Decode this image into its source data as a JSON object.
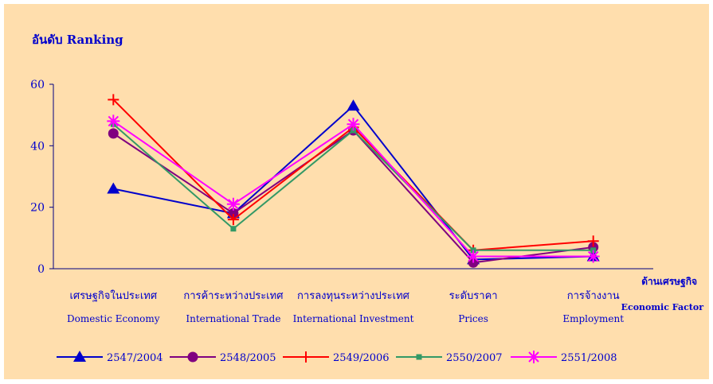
{
  "chart_data": {
    "type": "line",
    "title": "อันดับ  Ranking",
    "xlabel": [
      "ด้านเศรษฐกิจ",
      "Economic Factor"
    ],
    "ylim": [
      0,
      60
    ],
    "yticks": [
      "0",
      "20",
      "40",
      "60"
    ],
    "categories": [
      {
        "th": "เศรษฐกิจในประเทศ",
        "en": "Domestic Economy"
      },
      {
        "th": "การค้าระหว่างประเทศ",
        "en": "International Trade"
      },
      {
        "th": "การลงทุนระหว่างประเทศ",
        "en": "International Investment"
      },
      {
        "th": "ระดับราคา",
        "en": "Prices"
      },
      {
        "th": "การจ้างงาน",
        "en": "Employment"
      }
    ],
    "grid": false,
    "legend": "bottom",
    "series": [
      {
        "name": "2547/2004",
        "color": "#0000cc",
        "marker": "triangle",
        "values": [
          26,
          18,
          53,
          3,
          4
        ]
      },
      {
        "name": "2548/2005",
        "color": "#800080",
        "marker": "circle",
        "values": [
          44,
          18,
          45,
          2,
          7
        ]
      },
      {
        "name": "2549/2006",
        "color": "#ff0000",
        "marker": "plus",
        "values": [
          55,
          16,
          46,
          6,
          9
        ]
      },
      {
        "name": "2550/2007",
        "color": "#339966",
        "marker": "square",
        "values": [
          47,
          13,
          45,
          6,
          6
        ]
      },
      {
        "name": "2551/2008",
        "color": "#ff00ff",
        "marker": "asterisk",
        "values": [
          48,
          21,
          47,
          4,
          4
        ]
      }
    ]
  }
}
